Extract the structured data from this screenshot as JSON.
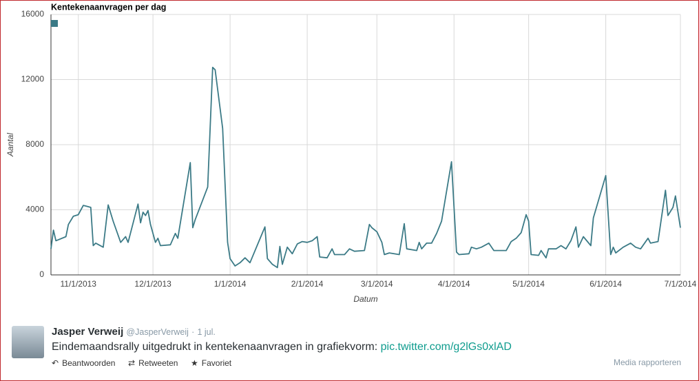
{
  "chart_data": {
    "type": "line",
    "title": "Kentekenaanvragen per dag",
    "x_label": "Datum",
    "y_label": "Aantal",
    "color": "#3b7a86",
    "grid": true,
    "xlim": [
      "2013-10-21",
      "2014-07-01"
    ],
    "xticks": [
      {
        "value": "2013-11-01",
        "label": "11/1/2013"
      },
      {
        "value": "2013-12-01",
        "label": "12/1/2013"
      },
      {
        "value": "2014-01-01",
        "label": "1/1/2014"
      },
      {
        "value": "2014-02-01",
        "label": "2/1/2014"
      },
      {
        "value": "2014-03-01",
        "label": "3/1/2014"
      },
      {
        "value": "2014-04-01",
        "label": "4/1/2014"
      },
      {
        "value": "2014-05-01",
        "label": "5/1/2014"
      },
      {
        "value": "2014-06-01",
        "label": "6/1/2014"
      },
      {
        "value": "2014-07-01",
        "label": "7/1/2014"
      }
    ],
    "ylim": [
      0,
      16000
    ],
    "yticks": [
      0,
      4000,
      8000,
      12000,
      16000
    ],
    "x": [
      "2013-10-21",
      "2013-10-22",
      "2013-10-23",
      "2013-10-27",
      "2013-10-28",
      "2013-10-30",
      "2013-11-01",
      "2013-11-03",
      "2013-11-06",
      "2013-11-07",
      "2013-11-08",
      "2013-11-11",
      "2013-11-13",
      "2013-11-15",
      "2013-11-18",
      "2013-11-20",
      "2013-11-21",
      "2013-11-25",
      "2013-11-26",
      "2013-11-27",
      "2013-11-28",
      "2013-11-29",
      "2013-11-30",
      "2013-12-02",
      "2013-12-03",
      "2013-12-04",
      "2013-12-08",
      "2013-12-10",
      "2013-12-11",
      "2013-12-16",
      "2013-12-17",
      "2013-12-18",
      "2013-12-23",
      "2013-12-25",
      "2013-12-26",
      "2013-12-29",
      "2013-12-31",
      "2014-01-01",
      "2014-01-03",
      "2014-01-05",
      "2014-01-07",
      "2014-01-09",
      "2014-01-15",
      "2014-01-16",
      "2014-01-18",
      "2014-01-20",
      "2014-01-21",
      "2014-01-22",
      "2014-01-24",
      "2014-01-26",
      "2014-01-28",
      "2014-01-30",
      "2014-02-01",
      "2014-02-03",
      "2014-02-05",
      "2014-02-06",
      "2014-02-09",
      "2014-02-11",
      "2014-02-12",
      "2014-02-16",
      "2014-02-18",
      "2014-02-20",
      "2014-02-24",
      "2014-02-26",
      "2014-02-27",
      "2014-03-01",
      "2014-03-03",
      "2014-03-04",
      "2014-03-06",
      "2014-03-10",
      "2014-03-12",
      "2014-03-13",
      "2014-03-17",
      "2014-03-18",
      "2014-03-19",
      "2014-03-21",
      "2014-03-23",
      "2014-03-25",
      "2014-03-27",
      "2014-03-31",
      "2014-04-02",
      "2014-04-03",
      "2014-04-07",
      "2014-04-08",
      "2014-04-10",
      "2014-04-12",
      "2014-04-15",
      "2014-04-17",
      "2014-04-22",
      "2014-04-24",
      "2014-04-26",
      "2014-04-28",
      "2014-04-30",
      "2014-05-01",
      "2014-05-02",
      "2014-05-05",
      "2014-05-06",
      "2014-05-08",
      "2014-05-09",
      "2014-05-12",
      "2014-05-14",
      "2014-05-16",
      "2014-05-18",
      "2014-05-20",
      "2014-05-21",
      "2014-05-23",
      "2014-05-26",
      "2014-05-27",
      "2014-06-01",
      "2014-06-03",
      "2014-06-04",
      "2014-06-05",
      "2014-06-08",
      "2014-06-11",
      "2014-06-13",
      "2014-06-15",
      "2014-06-18",
      "2014-06-19",
      "2014-06-22",
      "2014-06-25",
      "2014-06-26",
      "2014-06-28",
      "2014-06-29",
      "2014-07-01"
    ],
    "values": [
      1600,
      2750,
      2100,
      2350,
      3100,
      3600,
      3700,
      4270,
      4150,
      1800,
      1950,
      1700,
      4300,
      3300,
      2000,
      2350,
      2000,
      4350,
      3200,
      3850,
      3650,
      3950,
      3100,
      2000,
      2250,
      1800,
      1850,
      2550,
      2250,
      6900,
      2900,
      3400,
      5400,
      12750,
      12600,
      9000,
      2000,
      1000,
      550,
      750,
      1050,
      750,
      2950,
      1000,
      650,
      450,
      1750,
      650,
      1700,
      1300,
      1900,
      2050,
      2000,
      2100,
      2350,
      1100,
      1050,
      1600,
      1250,
      1250,
      1600,
      1450,
      1500,
      3100,
      2900,
      2650,
      2000,
      1250,
      1350,
      1250,
      3150,
      1600,
      1500,
      2000,
      1600,
      1950,
      1950,
      2550,
      3300,
      6950,
      1400,
      1250,
      1300,
      1700,
      1600,
      1700,
      1950,
      1500,
      1500,
      2050,
      2250,
      2600,
      3700,
      3300,
      1250,
      1200,
      1500,
      1050,
      1600,
      1600,
      1800,
      1600,
      2100,
      2950,
      1700,
      2350,
      1800,
      3500,
      6100,
      1250,
      1700,
      1350,
      1700,
      1950,
      1700,
      1600,
      2250,
      1950,
      2050,
      5200,
      3650,
      4150,
      4850,
      2900
    ]
  },
  "tweet": {
    "name": "Jasper Verweij",
    "handle": "@JasperVerweij",
    "separator": "·",
    "time": "1 jul.",
    "text": "Eindemaandsrally uitgedrukt in kentekenaanvragen in grafiekvorm:",
    "link": "pic.twitter.com/g2lGs0xlAD",
    "actions": [
      "Beantwoorden",
      "Retweeten",
      "Favoriet"
    ],
    "report": "Media rapporteren"
  }
}
